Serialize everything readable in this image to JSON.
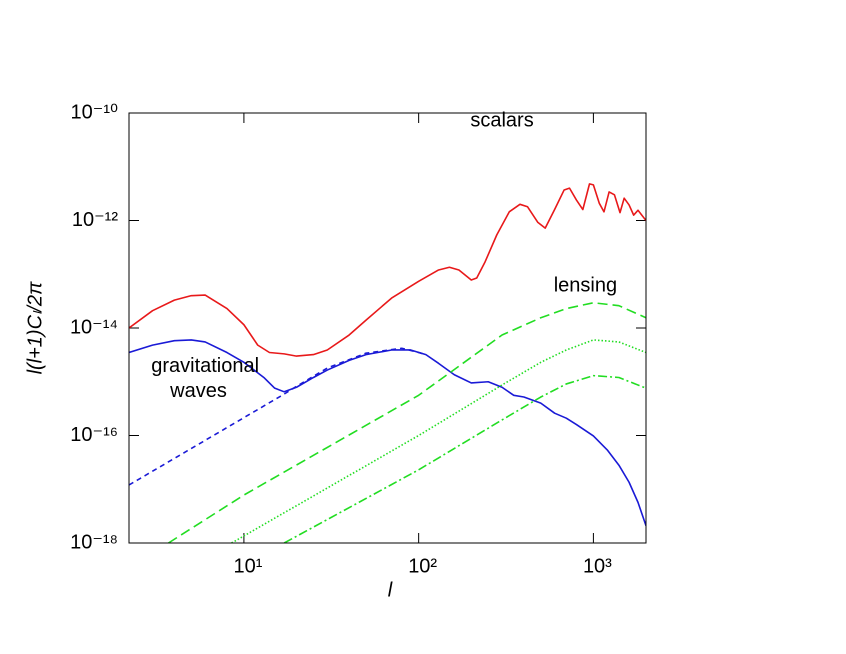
{
  "chart_data": {
    "type": "line",
    "xlabel": "l",
    "ylabel": "l(l+1)Cₗ/2π",
    "xscale": "log",
    "yscale": "log",
    "xlim": [
      2.2,
      2000
    ],
    "ylim": [
      1e-18,
      1e-10
    ],
    "xticks": [
      {
        "value": 10,
        "label": "10¹"
      },
      {
        "value": 100,
        "label": "10²"
      },
      {
        "value": 1000,
        "label": "10³"
      }
    ],
    "yticks": [
      {
        "value": 1e-18,
        "label": "10⁻¹⁸"
      },
      {
        "value": 1e-16,
        "label": "10⁻¹⁶"
      },
      {
        "value": 1e-14,
        "label": "10⁻¹⁴"
      },
      {
        "value": 1e-12,
        "label": "10⁻¹²"
      },
      {
        "value": 1e-10,
        "label": "10⁻¹⁰"
      }
    ],
    "annotations": [
      {
        "text": "scalars",
        "x": 300,
        "y": 7e-11
      },
      {
        "text": "lensing",
        "x": 900,
        "y": 6e-14
      },
      {
        "text": "gravitational",
        "x": 6,
        "y": 1.9e-15
      },
      {
        "text": "waves",
        "x": 5.5,
        "y": 6.5e-16
      }
    ],
    "series": [
      {
        "color": "#e8191a",
        "dash": "solid",
        "x": [
          2.2,
          3,
          4,
          5,
          6,
          8,
          10,
          12,
          14,
          17,
          20,
          25,
          30,
          40,
          50,
          70,
          100,
          130,
          150,
          170,
          200,
          215,
          240,
          280,
          330,
          380,
          420,
          480,
          530,
          600,
          680,
          730,
          800,
          870,
          950,
          1000,
          1080,
          1150,
          1230,
          1320,
          1420,
          1500,
          1600,
          1700,
          1800,
          2000
        ],
        "values": [
          1e-14,
          2.1e-14,
          3.3e-14,
          4e-14,
          4.1e-14,
          2.3e-14,
          1.15e-14,
          4.8e-15,
          3.5e-15,
          3.3e-15,
          3e-15,
          3.2e-15,
          3.9e-15,
          7.4e-15,
          1.4e-14,
          3.6e-14,
          7.4e-14,
          1.2e-13,
          1.35e-13,
          1.2e-13,
          7.8e-14,
          8.5e-14,
          1.7e-13,
          5.4e-13,
          1.45e-12,
          2e-12,
          1.8e-12,
          9.3e-13,
          7.2e-13,
          1.6e-12,
          3.7e-12,
          4e-12,
          2.4e-12,
          1.6e-12,
          4.8e-12,
          4.6e-12,
          2.1e-12,
          1.45e-12,
          3.4e-12,
          3e-12,
          1.4e-12,
          2.6e-12,
          1.95e-12,
          1.26e-12,
          1.55e-12,
          1e-12
        ]
      },
      {
        "color": "#1a1ad6",
        "dash": "solid",
        "x": [
          2.2,
          3,
          4,
          5,
          6,
          8,
          10,
          13,
          15,
          17,
          20,
          25,
          30,
          40,
          50,
          70,
          90,
          110,
          130,
          160,
          200,
          250,
          300,
          350,
          400,
          500,
          600,
          700,
          800,
          1000,
          1200,
          1400,
          1600,
          1800,
          2000
        ],
        "values": [
          3.5e-15,
          4.8e-15,
          5.8e-15,
          6e-15,
          5.5e-15,
          3.5e-15,
          2.3e-15,
          1.2e-15,
          7.6e-16,
          6.5e-16,
          7.9e-16,
          1.2e-15,
          1.65e-15,
          2.5e-15,
          3.2e-15,
          3.9e-15,
          3.9e-15,
          3.2e-15,
          2.2e-15,
          1.35e-15,
          9.5e-16,
          1e-15,
          7.9e-16,
          5.6e-16,
          5.2e-16,
          4e-16,
          2.6e-16,
          2.1e-16,
          1.6e-16,
          9.8e-17,
          5.4e-17,
          2.8e-17,
          1.35e-17,
          5.7e-18,
          2.1e-18
        ]
      },
      {
        "color": "#1a1ad6",
        "dash": "dashed",
        "x": [
          2.2,
          17,
          20,
          30,
          50,
          80,
          100,
          110
        ],
        "values": [
          1.2e-17,
          5.9e-16,
          8.2e-16,
          1.8e-15,
          3.4e-15,
          4.2e-15,
          3.5e-15,
          3.2e-15
        ]
      },
      {
        "color": "#22dd22",
        "dash": "longdash",
        "x": [
          3.7,
          10,
          100,
          300,
          500,
          700,
          1000,
          1400,
          2000
        ],
        "values": [
          1e-18,
          7.8e-18,
          5.6e-16,
          7.4e-15,
          1.55e-14,
          2.3e-14,
          2.95e-14,
          2.6e-14,
          1.55e-14
        ]
      },
      {
        "color": "#22dd22",
        "dash": "dotted",
        "x": [
          8.5,
          100,
          300,
          500,
          700,
          1000,
          1400,
          2000
        ],
        "values": [
          1e-18,
          1e-16,
          8.7e-16,
          2.3e-15,
          3.9e-15,
          6e-15,
          5.5e-15,
          3.5e-15
        ]
      },
      {
        "color": "#22dd22",
        "dash": "dashdot",
        "x": [
          17,
          100,
          300,
          500,
          700,
          1000,
          1400,
          2000
        ],
        "values": [
          1e-18,
          2.3e-17,
          1.95e-16,
          5.2e-16,
          9.1e-16,
          1.3e-15,
          1.2e-15,
          7.6e-16
        ]
      }
    ]
  }
}
